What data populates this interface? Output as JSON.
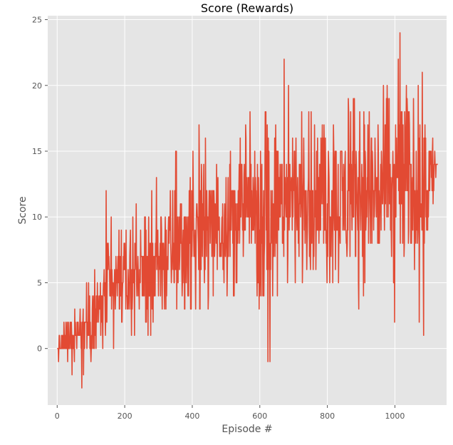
{
  "chart_data": {
    "type": "line",
    "title": "Score (Rewards)",
    "xlabel": "Episode #",
    "ylabel": "Score",
    "xlim": [
      -28,
      1153
    ],
    "ylim": [
      -4.3,
      25.3
    ],
    "xticks": [
      0,
      200,
      400,
      600,
      800,
      1000
    ],
    "yticks": [
      0,
      5,
      10,
      15,
      20,
      25
    ],
    "grid": true,
    "background": "#e5e5e5",
    "series": [
      {
        "color": "#e24a33",
        "n_episodes": 1128,
        "x_anchor": [
          0,
          25,
          50,
          75,
          100,
          125,
          150,
          175,
          200,
          225,
          250,
          275,
          300,
          325,
          350,
          375,
          400,
          425,
          450,
          475,
          500,
          525,
          550,
          575,
          600,
          625,
          650,
          675,
          700,
          725,
          750,
          775,
          800,
          825,
          850,
          875,
          900,
          925,
          950,
          975,
          1000,
          1025,
          1050,
          1075,
          1100,
          1127
        ],
        "mean": [
          0,
          0.5,
          1,
          1.5,
          2,
          3,
          4,
          4.5,
          5,
          5.5,
          6,
          6.5,
          7,
          7,
          7.5,
          8,
          8.5,
          9,
          9,
          9.5,
          10,
          10,
          10.5,
          10.5,
          10.5,
          11,
          11,
          11,
          11.5,
          11,
          11,
          11.5,
          11,
          11,
          11.5,
          11.5,
          12,
          12,
          12,
          12,
          12.5,
          13,
          12.5,
          12.5,
          13,
          14
        ],
        "band_max": [
          1,
          2,
          3,
          4,
          6,
          7,
          12,
          8,
          10,
          11,
          12,
          13,
          14,
          16,
          15,
          15,
          17,
          16,
          16,
          15,
          16,
          17,
          16,
          18,
          17,
          19,
          18,
          22,
          18,
          18,
          18,
          17,
          18,
          18,
          19,
          19,
          19,
          20,
          19,
          20,
          21,
          24,
          20,
          21,
          20,
          14
        ],
        "band_min": [
          -1,
          -2,
          -2,
          -3,
          -1,
          0,
          1,
          -1,
          2,
          1,
          2,
          0,
          3,
          2,
          3,
          3,
          3,
          3,
          3,
          3,
          2,
          3,
          3,
          3,
          3,
          -1,
          4,
          3,
          4,
          3,
          4,
          4,
          3,
          4,
          4,
          2,
          2,
          1,
          2,
          1,
          2,
          4,
          5,
          1,
          6,
          14
        ],
        "highlights": [
          {
            "x": 145,
            "y": 12
          },
          {
            "x": 420,
            "y": 17
          },
          {
            "x": 672,
            "y": 22
          },
          {
            "x": 1010,
            "y": 22
          },
          {
            "x": 1015,
            "y": 24
          },
          {
            "x": 630,
            "y": -1
          },
          {
            "x": 73,
            "y": -3
          },
          {
            "x": 1085,
            "y": 1
          },
          {
            "x": 1127,
            "y": 14
          }
        ]
      }
    ]
  }
}
